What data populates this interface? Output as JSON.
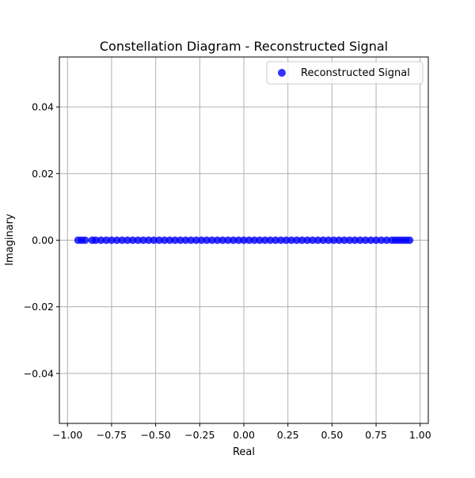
{
  "chart_data": {
    "type": "scatter",
    "title": "Constellation Diagram - Reconstructed Signal",
    "xlabel": "Real",
    "ylabel": "Imaginary",
    "xlim": [
      -1.046,
      1.046
    ],
    "ylim": [
      -0.055,
      0.055
    ],
    "xticks": [
      -1.0,
      -0.75,
      -0.5,
      -0.25,
      0.0,
      0.25,
      0.5,
      0.75,
      1.0
    ],
    "xtick_labels": [
      "−1.00",
      "−0.75",
      "−0.50",
      "−0.25",
      "0.00",
      "0.25",
      "0.50",
      "0.75",
      "1.00"
    ],
    "yticks": [
      -0.04,
      -0.02,
      0.0,
      0.02,
      0.04
    ],
    "ytick_labels": [
      "−0.04",
      "−0.02",
      "0.00",
      "0.02",
      "0.04"
    ],
    "grid": true,
    "legend_position": "upper right",
    "series": [
      {
        "name": "Reconstructed Signal",
        "color": "#0000ff",
        "alpha": 0.8,
        "x": [
          -0.94,
          -0.92,
          -0.9,
          -0.86,
          -0.84,
          -0.81,
          -0.78,
          -0.75,
          -0.72,
          -0.69,
          -0.66,
          -0.63,
          -0.6,
          -0.57,
          -0.54,
          -0.51,
          -0.48,
          -0.45,
          -0.42,
          -0.39,
          -0.36,
          -0.33,
          -0.3,
          -0.27,
          -0.24,
          -0.21,
          -0.18,
          -0.15,
          -0.12,
          -0.09,
          -0.06,
          -0.03,
          0.0,
          0.03,
          0.06,
          0.09,
          0.12,
          0.15,
          0.18,
          0.21,
          0.24,
          0.27,
          0.3,
          0.33,
          0.36,
          0.39,
          0.42,
          0.45,
          0.48,
          0.51,
          0.54,
          0.57,
          0.6,
          0.63,
          0.66,
          0.69,
          0.72,
          0.75,
          0.78,
          0.81,
          0.84,
          0.86,
          0.88,
          0.9,
          0.92,
          0.94
        ],
        "y": [
          0,
          0,
          0,
          0,
          0,
          0,
          0,
          0,
          0,
          0,
          0,
          0,
          0,
          0,
          0,
          0,
          0,
          0,
          0,
          0,
          0,
          0,
          0,
          0,
          0,
          0,
          0,
          0,
          0,
          0,
          0,
          0,
          0,
          0,
          0,
          0,
          0,
          0,
          0,
          0,
          0,
          0,
          0,
          0,
          0,
          0,
          0,
          0,
          0,
          0,
          0,
          0,
          0,
          0,
          0,
          0,
          0,
          0,
          0,
          0,
          0,
          0,
          0,
          0,
          0,
          0
        ]
      }
    ]
  }
}
